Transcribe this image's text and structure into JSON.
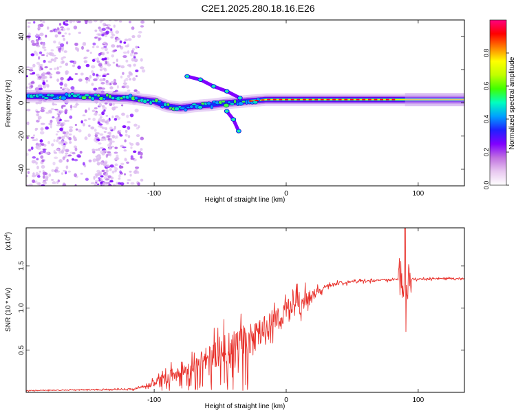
{
  "title": "C2E1.2025.280.18.16.E26",
  "chart_data": [
    {
      "type": "heatmap",
      "name": "spectrogram",
      "xlabel": "Height of straight line (km)",
      "ylabel": "Frequency (Hz)",
      "xlim": [
        -197,
        135
      ],
      "ylim": [
        -50,
        50
      ],
      "xticks": [
        -100,
        0,
        100
      ],
      "yticks": [
        -40,
        -20,
        0,
        20,
        40
      ],
      "xticklabels": [
        "-100",
        "0",
        "100"
      ],
      "yticklabels": [
        "-40",
        "-20",
        "0",
        "20",
        "40"
      ],
      "colorbar": {
        "label": "Normalized spectral amplitude",
        "range": [
          0,
          1
        ],
        "ticks": [
          0.0,
          0.2,
          0.4,
          0.6,
          0.8
        ],
        "ticklabels": [
          "0.0",
          "0.2",
          "0.4",
          "0.6",
          "0.8"
        ],
        "colormap": [
          "#ffffff",
          "#e8c8f0",
          "#c070e0",
          "#8000ff",
          "#2020ff",
          "#00a0ff",
          "#00ffc0",
          "#40ff00",
          "#c0ff00",
          "#ffff00",
          "#ff8000",
          "#ff0000",
          "#ff0080"
        ]
      },
      "features": {
        "noise_x_range": [
          -197,
          -108
        ],
        "ridge": [
          [
            -197,
            4
          ],
          [
            -160,
            4
          ],
          [
            -120,
            3
          ],
          [
            -100,
            1
          ],
          [
            -90,
            -2
          ],
          [
            -80,
            -3
          ],
          [
            -70,
            -2
          ],
          [
            -55,
            -1
          ],
          [
            -45,
            0
          ],
          [
            -30,
            1
          ],
          [
            -15,
            2
          ],
          [
            0,
            2
          ],
          [
            40,
            2
          ],
          [
            80,
            2
          ],
          [
            90,
            2
          ],
          [
            110,
            2
          ],
          [
            135,
            2
          ]
        ],
        "branch_upper": [
          [
            -75,
            16
          ],
          [
            -65,
            14
          ],
          [
            -55,
            10
          ],
          [
            -45,
            7
          ],
          [
            -35,
            3
          ]
        ],
        "branch_lower": [
          [
            -45,
            -5
          ],
          [
            -40,
            -10
          ],
          [
            -36,
            -17
          ]
        ]
      }
    },
    {
      "type": "line",
      "name": "snr",
      "xlabel": "Height of straight line (km)",
      "ylabel": "SNR (10 * v/v)",
      "multiplier_label": "(x10",
      "multiplier_exp": "4",
      "xlim": [
        -197,
        135
      ],
      "ylim": [
        0,
        1.95
      ],
      "xticks": [
        -100,
        0,
        100
      ],
      "yticks": [
        0.5,
        1.0,
        1.5
      ],
      "xticklabels": [
        "-100",
        "0",
        "100"
      ],
      "yticklabels": [
        "0.5",
        "1.0",
        "1.5"
      ],
      "color": "#e8302a",
      "envelope": [
        [
          -197,
          0.02
        ],
        [
          -150,
          0.03
        ],
        [
          -115,
          0.04
        ],
        [
          -100,
          0.1
        ],
        [
          -85,
          0.2
        ],
        [
          -70,
          0.3
        ],
        [
          -55,
          0.45
        ],
        [
          -40,
          0.55
        ],
        [
          -30,
          0.6
        ],
        [
          -20,
          0.72
        ],
        [
          -10,
          0.85
        ],
        [
          0,
          0.95
        ],
        [
          10,
          1.05
        ],
        [
          20,
          1.15
        ],
        [
          30,
          1.25
        ],
        [
          40,
          1.3
        ],
        [
          50,
          1.31
        ],
        [
          60,
          1.32
        ],
        [
          75,
          1.33
        ],
        [
          85,
          1.34
        ],
        [
          90,
          1.35
        ],
        [
          100,
          1.34
        ],
        [
          120,
          1.35
        ],
        [
          135,
          1.35
        ]
      ],
      "noise_amplitude": [
        [
          -197,
          0.01
        ],
        [
          -110,
          0.02
        ],
        [
          -95,
          0.15
        ],
        [
          -80,
          0.2
        ],
        [
          -60,
          0.3
        ],
        [
          -45,
          0.38
        ],
        [
          -30,
          0.35
        ],
        [
          -20,
          0.3
        ],
        [
          -5,
          0.3
        ],
        [
          10,
          0.25
        ],
        [
          20,
          0.15
        ],
        [
          30,
          0.05
        ],
        [
          60,
          0.03
        ],
        [
          135,
          0.02
        ]
      ],
      "spike": {
        "x": 90,
        "max": 1.95,
        "min": 0.72
      }
    }
  ]
}
